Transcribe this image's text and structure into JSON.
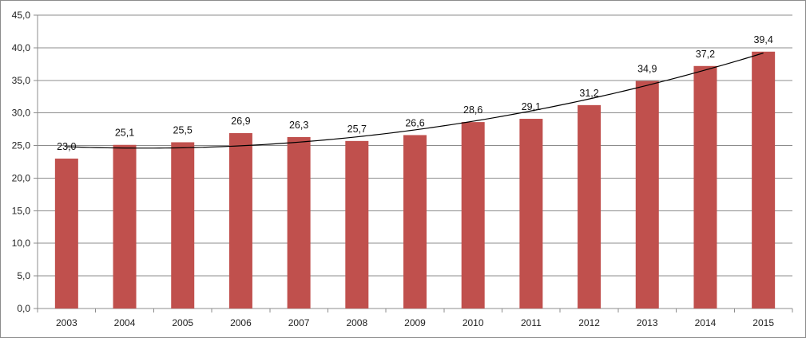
{
  "chart_data": {
    "type": "bar",
    "categories": [
      "2003",
      "2004",
      "2005",
      "2006",
      "2007",
      "2008",
      "2009",
      "2010",
      "2011",
      "2012",
      "2013",
      "2014",
      "2015"
    ],
    "values": [
      23.0,
      25.1,
      25.5,
      26.9,
      26.3,
      25.7,
      26.6,
      28.6,
      29.1,
      31.2,
      34.9,
      37.2,
      39.4
    ],
    "data_labels": [
      "23,0",
      "25,1",
      "25,5",
      "26,9",
      "26,3",
      "25,7",
      "26,6",
      "28,6",
      "29,1",
      "31,2",
      "34,9",
      "37,2",
      "39,4"
    ],
    "y_ticks": [
      0,
      5,
      10,
      15,
      20,
      25,
      30,
      35,
      40,
      45
    ],
    "y_tick_labels": [
      "0,0",
      "5,0",
      "10,0",
      "15,0",
      "20,0",
      "25,0",
      "30,0",
      "35,0",
      "40,0",
      "45,0"
    ],
    "ylim": [
      0,
      45
    ],
    "grid": true,
    "legend": "none",
    "trendline": {
      "type": "polynomial"
    },
    "title": "",
    "xlabel": "",
    "ylabel": "",
    "colors": {
      "bar": "#c0504d",
      "trendline": "#000000",
      "grid": "#8c8c8c"
    }
  }
}
